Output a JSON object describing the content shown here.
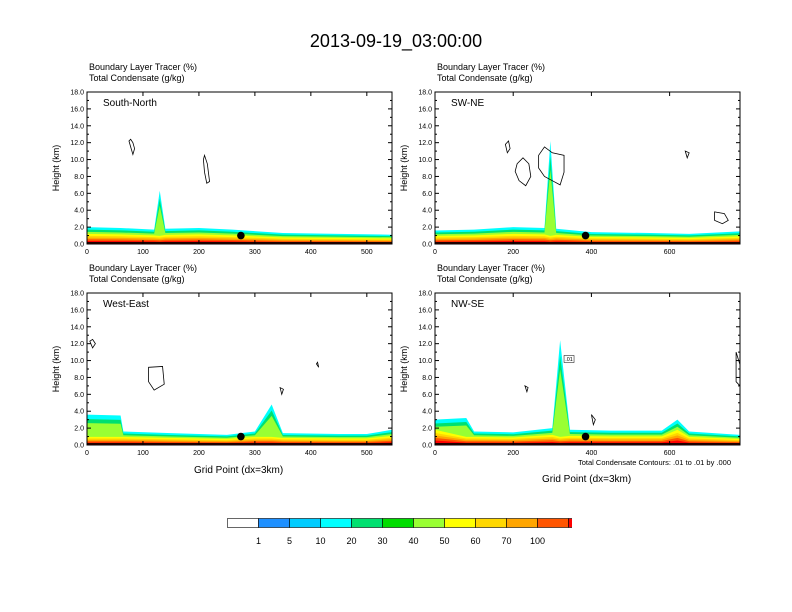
{
  "main_title": "2013-09-19_03:00:00",
  "panel_title_lines": [
    "Boundary Layer Tracer   (%)",
    "Total Condensate   (g/kg)"
  ],
  "y_axis_label": "Height (km)",
  "x_axis_label": "Grid Point (dx=3km)",
  "contour_note": "Total Condensate Contours: .01 to .01 by .000",
  "contour_label": ".01",
  "colorbar": {
    "levels": [
      "1",
      "5",
      "10",
      "20",
      "30",
      "40",
      "50",
      "60",
      "70",
      "100"
    ],
    "colors": [
      "#ffffff",
      "#1e90ff",
      "#00ccff",
      "#00ffff",
      "#00e070",
      "#00dd00",
      "#99ff33",
      "#ffff00",
      "#ffd700",
      "#ffa500",
      "#ff5500",
      "#ff0000"
    ]
  },
  "chart_data": [
    {
      "type": "filled-contour",
      "name": "South-North",
      "ylabel": "Height (km)",
      "xlim": [
        0,
        545
      ],
      "ylim": [
        0,
        18
      ],
      "yticks": [
        "0.0",
        "2.0",
        "4.0",
        "6.0",
        "8.0",
        "10.0",
        "12.0",
        "14.0",
        "16.0",
        "18.0"
      ],
      "xticks": [
        0,
        100,
        200,
        300,
        400,
        500
      ],
      "marker": {
        "x": 275,
        "y": 1.0
      },
      "pbl_top": [
        [
          0,
          2.0
        ],
        [
          60,
          1.9
        ],
        [
          120,
          1.7
        ],
        [
          130,
          6.3
        ],
        [
          140,
          1.8
        ],
        [
          200,
          1.9
        ],
        [
          260,
          1.7
        ],
        [
          350,
          1.3
        ],
        [
          450,
          1.2
        ],
        [
          545,
          1.1
        ]
      ],
      "contours": [
        [
          [
            75,
            12.2
          ],
          [
            78,
            11.5
          ],
          [
            82,
            10.6
          ],
          [
            85,
            11.3
          ],
          [
            82,
            12.0
          ],
          [
            78,
            12.4
          ]
        ],
        [
          [
            210,
            10.5
          ],
          [
            215,
            9.5
          ],
          [
            219,
            7.4
          ],
          [
            214,
            7.2
          ],
          [
            210,
            8.5
          ],
          [
            208,
            10.0
          ]
        ]
      ]
    },
    {
      "type": "filled-contour",
      "name": "SW-NE",
      "ylabel": "Height (km)",
      "xlim": [
        0,
        780
      ],
      "ylim": [
        0,
        18
      ],
      "yticks": [
        "0.0",
        "2.0",
        "4.0",
        "6.0",
        "8.0",
        "10.0",
        "12.0",
        "14.0",
        "16.0",
        "18.0"
      ],
      "xticks": [
        0,
        200,
        400,
        600
      ],
      "marker": {
        "x": 385,
        "y": 1.0
      },
      "pbl_top": [
        [
          0,
          1.6
        ],
        [
          100,
          1.7
        ],
        [
          200,
          2.0
        ],
        [
          280,
          1.9
        ],
        [
          295,
          12.2
        ],
        [
          310,
          1.8
        ],
        [
          400,
          1.4
        ],
        [
          550,
          1.3
        ],
        [
          650,
          1.2
        ],
        [
          780,
          1.5
        ]
      ],
      "contours": [
        [
          [
            180,
            11.8
          ],
          [
            185,
            10.8
          ],
          [
            192,
            11.3
          ],
          [
            188,
            12.2
          ]
        ],
        [
          [
            210,
            9.5
          ],
          [
            225,
            10.2
          ],
          [
            240,
            9.5
          ],
          [
            245,
            8.0
          ],
          [
            232,
            6.9
          ],
          [
            215,
            7.5
          ],
          [
            205,
            8.6
          ]
        ],
        [
          [
            265,
            10.5
          ],
          [
            280,
            11.5
          ],
          [
            300,
            10.8
          ],
          [
            330,
            10.5
          ],
          [
            330,
            8.5
          ],
          [
            320,
            7.0
          ],
          [
            300,
            7.5
          ],
          [
            280,
            8.0
          ],
          [
            265,
            9.0
          ]
        ],
        [
          [
            640,
            11.0
          ],
          [
            645,
            10.2
          ],
          [
            650,
            10.8
          ]
        ],
        [
          [
            715,
            3.8
          ],
          [
            740,
            3.6
          ],
          [
            750,
            2.8
          ],
          [
            735,
            2.4
          ],
          [
            715,
            2.8
          ]
        ]
      ]
    },
    {
      "type": "filled-contour",
      "name": "West-East",
      "ylabel": "Height (km)",
      "xlim": [
        0,
        545
      ],
      "ylim": [
        0,
        18
      ],
      "yticks": [
        "0.0",
        "2.0",
        "4.0",
        "6.0",
        "8.0",
        "10.0",
        "12.0",
        "14.0",
        "16.0",
        "18.0"
      ],
      "xticks": [
        0,
        100,
        200,
        300,
        400,
        500
      ],
      "marker": {
        "x": 275,
        "y": 1.0
      },
      "pbl_top": [
        [
          0,
          3.6
        ],
        [
          60,
          3.5
        ],
        [
          65,
          1.6
        ],
        [
          150,
          1.4
        ],
        [
          250,
          1.2
        ],
        [
          300,
          1.6
        ],
        [
          330,
          4.8
        ],
        [
          350,
          1.4
        ],
        [
          450,
          1.3
        ],
        [
          500,
          1.3
        ],
        [
          545,
          1.8
        ]
      ],
      "contours": [
        [
          [
            5,
            12.3
          ],
          [
            10,
            11.5
          ],
          [
            15,
            12.0
          ],
          [
            10,
            12.5
          ]
        ],
        [
          [
            110,
            9.2
          ],
          [
            135,
            9.3
          ],
          [
            138,
            7.2
          ],
          [
            120,
            6.5
          ],
          [
            110,
            7.5
          ]
        ],
        [
          [
            345,
            6.8
          ],
          [
            348,
            6.0
          ],
          [
            351,
            6.6
          ]
        ],
        [
          [
            410,
            9.6
          ],
          [
            414,
            9.2
          ],
          [
            412,
            9.8
          ]
        ]
      ]
    },
    {
      "type": "filled-contour",
      "name": "NW-SE",
      "ylabel": "Height (km)",
      "xlim": [
        0,
        780
      ],
      "ylim": [
        0,
        18
      ],
      "yticks": [
        "0.0",
        "2.0",
        "4.0",
        "6.0",
        "8.0",
        "10.0",
        "12.0",
        "14.0",
        "16.0",
        "18.0"
      ],
      "xticks": [
        0,
        200,
        400,
        600
      ],
      "marker": {
        "x": 385,
        "y": 1.0
      },
      "pbl_top": [
        [
          0,
          3.0
        ],
        [
          80,
          3.2
        ],
        [
          100,
          1.6
        ],
        [
          200,
          1.5
        ],
        [
          300,
          2.0
        ],
        [
          320,
          12.4
        ],
        [
          345,
          1.8
        ],
        [
          450,
          1.7
        ],
        [
          580,
          1.7
        ],
        [
          620,
          3.0
        ],
        [
          650,
          1.6
        ],
        [
          780,
          1.2
        ]
      ],
      "contours": [
        [
          [
            230,
            7.0
          ],
          [
            235,
            6.3
          ],
          [
            238,
            6.8
          ]
        ],
        [
          [
            400,
            3.6
          ],
          [
            405,
            2.4
          ],
          [
            410,
            3.0
          ]
        ],
        [
          [
            770,
            11.0
          ],
          [
            780,
            9.5
          ],
          [
            780,
            7.0
          ],
          [
            770,
            7.5
          ]
        ]
      ]
    }
  ]
}
